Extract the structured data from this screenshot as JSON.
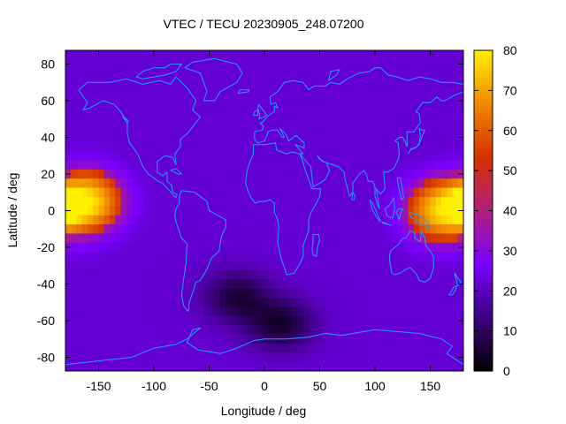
{
  "chart_data": {
    "type": "heatmap",
    "title": "VTEC / TECU 20230905_248.07200",
    "xlabel": "Longitude / deg",
    "ylabel": "Latitude / deg",
    "xlim": [
      -180,
      180
    ],
    "ylim": [
      -87.5,
      87.5
    ],
    "x_ticks": [
      -150,
      -100,
      -50,
      0,
      50,
      100,
      150
    ],
    "y_ticks": [
      -80,
      -60,
      -40,
      -20,
      0,
      20,
      40,
      60,
      80
    ],
    "colorbar": {
      "min": 0,
      "max": 80,
      "ticks": [
        0,
        10,
        20,
        30,
        40,
        50,
        60,
        70,
        80
      ],
      "colormap": [
        "#000000",
        "#3c0080",
        "#7a00ff",
        "#b02080",
        "#d43000",
        "#f08800",
        "#fff000"
      ]
    },
    "field_features": [
      {
        "feature": "maximum",
        "lon": -160,
        "lat": 5,
        "value": 76
      },
      {
        "feature": "maximum",
        "lon": 160,
        "lat": 0,
        "value": 74
      },
      {
        "feature": "minimum",
        "lon": -25,
        "lat": -47,
        "value": 6
      },
      {
        "feature": "minimum",
        "lon": 15,
        "lat": -62,
        "value": 5
      },
      {
        "feature": "background",
        "lon": 0,
        "lat": 60,
        "value": 22
      }
    ],
    "overlay": "coastlines",
    "grid": false
  },
  "colors": {
    "coastline": "#1ea0ff",
    "axis": "#000000",
    "background": "#ffffff"
  }
}
